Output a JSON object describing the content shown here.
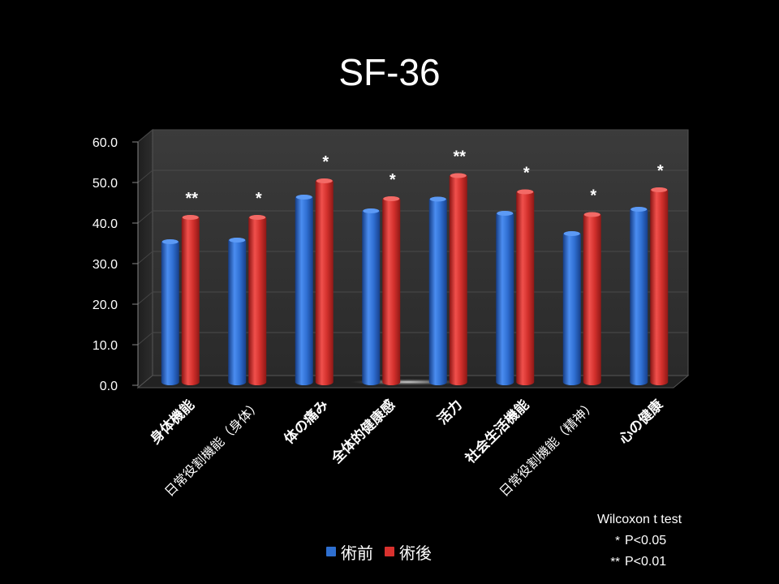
{
  "slide": {
    "title": "SF-36"
  },
  "chart_data": {
    "type": "bar",
    "title": "SF-36",
    "xlabel": "",
    "ylabel": "",
    "ylim": [
      0,
      60
    ],
    "yticks": [
      "0.0",
      "10.0",
      "20.0",
      "30.0",
      "40.0",
      "50.0",
      "60.0"
    ],
    "grid": true,
    "categories": [
      "身体機能",
      "日常役割機能（身体）",
      "体の痛み",
      "全体的健康感",
      "活力",
      "社会生活機能",
      "日常役割機能（精神）",
      "心の健康"
    ],
    "category_bold": [
      true,
      false,
      true,
      true,
      true,
      true,
      false,
      true
    ],
    "series": [
      {
        "name": "術前",
        "color": "#2e6fd0",
        "values": [
          36.0,
          36.4,
          47.0,
          43.6,
          46.5,
          43.0,
          38.0,
          44.0
        ]
      },
      {
        "name": "術後",
        "color": "#d8312e",
        "values": [
          42.0,
          42.0,
          51.0,
          46.6,
          52.3,
          48.3,
          42.7,
          48.8
        ]
      }
    ],
    "significance": [
      "**",
      "*",
      "*",
      "*",
      "**",
      "*",
      "*",
      "*"
    ],
    "legend_position": "bottom"
  },
  "stats_note": {
    "title": "Wilcoxon t test",
    "rows": [
      {
        "symbol": "*",
        "label": "P<0.05"
      },
      {
        "symbol": "**",
        "label": "P<0.01"
      }
    ]
  }
}
